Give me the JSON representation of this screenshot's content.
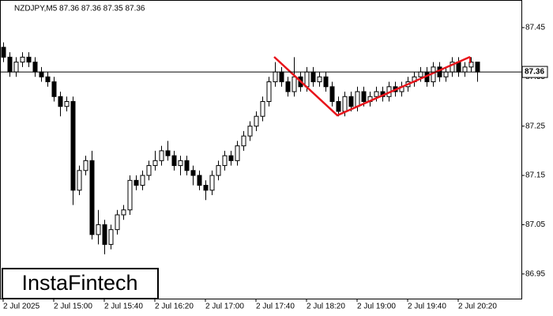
{
  "chart_data": {
    "type": "candlestick",
    "title": "NZDJPY,M5  87.36 87.36 87.35 87.36",
    "watermark": "InstaFintech",
    "categories": [
      "2 Jul 2025",
      null,
      null,
      null,
      null,
      null,
      null,
      null,
      "2 Jul 15:00",
      null,
      null,
      null,
      null,
      null,
      null,
      null,
      "2 Jul 15:40",
      null,
      null,
      null,
      null,
      null,
      null,
      null,
      "2 Jul 16:20",
      null,
      null,
      null,
      null,
      null,
      null,
      null,
      "2 Jul 17:00",
      null,
      null,
      null,
      null,
      null,
      null,
      null,
      "2 Jul 17:40",
      null,
      null,
      null,
      null,
      null,
      null,
      null,
      "2 Jul 18:20",
      null,
      null,
      null,
      null,
      null,
      null,
      null,
      "2 Jul 19:00",
      null,
      null,
      null,
      null,
      null,
      null,
      null,
      "2 Jul 19:40",
      null,
      null,
      null,
      null,
      null,
      null,
      null,
      "2 Jul 20:20",
      null,
      null,
      null
    ],
    "open": [
      87.41,
      87.39,
      87.36,
      87.38,
      87.39,
      87.38,
      87.36,
      87.35,
      87.34,
      87.31,
      87.29,
      87.3,
      87.12,
      87.16,
      87.18,
      87.03,
      87.05,
      87.01,
      87.04,
      87.07,
      87.08,
      87.14,
      87.13,
      87.15,
      87.17,
      87.18,
      87.2,
      87.19,
      87.17,
      87.18,
      87.16,
      87.15,
      87.13,
      87.12,
      87.15,
      87.17,
      87.19,
      87.18,
      87.21,
      87.23,
      87.25,
      87.27,
      87.3,
      87.34,
      87.36,
      87.34,
      87.32,
      87.35,
      87.33,
      87.36,
      87.34,
      87.35,
      87.33,
      87.3,
      87.28,
      87.31,
      87.29,
      87.32,
      87.3,
      87.31,
      87.32,
      87.31,
      87.33,
      87.32,
      87.33,
      87.34,
      87.35,
      87.36,
      87.34,
      87.37,
      87.35,
      87.36,
      87.38,
      87.36,
      87.37,
      87.38
    ],
    "high": [
      87.42,
      87.4,
      87.39,
      87.4,
      87.4,
      87.39,
      87.37,
      87.36,
      87.35,
      87.32,
      87.31,
      87.31,
      87.17,
      87.19,
      87.2,
      87.08,
      87.06,
      87.05,
      87.08,
      87.09,
      87.15,
      87.15,
      87.16,
      87.18,
      87.2,
      87.21,
      87.22,
      87.2,
      87.19,
      87.19,
      87.17,
      87.16,
      87.14,
      87.16,
      87.18,
      87.2,
      87.2,
      87.22,
      87.24,
      87.26,
      87.28,
      87.31,
      87.35,
      87.38,
      87.37,
      87.35,
      87.39,
      87.36,
      87.37,
      87.37,
      87.36,
      87.36,
      87.34,
      87.31,
      87.32,
      87.32,
      87.33,
      87.33,
      87.32,
      87.33,
      87.33,
      87.34,
      87.34,
      87.34,
      87.35,
      87.36,
      87.37,
      87.37,
      87.38,
      87.38,
      87.37,
      87.39,
      87.39,
      87.38,
      87.39,
      87.38
    ],
    "low": [
      87.38,
      87.35,
      87.35,
      87.37,
      87.37,
      87.35,
      87.34,
      87.33,
      87.3,
      87.27,
      87.28,
      87.09,
      87.11,
      87.15,
      87.02,
      87.01,
      86.99,
      87.0,
      87.03,
      87.06,
      87.07,
      87.12,
      87.12,
      87.14,
      87.16,
      87.17,
      87.18,
      87.16,
      87.15,
      87.15,
      87.13,
      87.12,
      87.1,
      87.11,
      87.14,
      87.16,
      87.17,
      87.17,
      87.2,
      87.22,
      87.24,
      87.26,
      87.29,
      87.33,
      87.33,
      87.31,
      87.31,
      87.32,
      87.32,
      87.33,
      87.33,
      87.32,
      87.29,
      87.27,
      87.27,
      87.28,
      87.28,
      87.29,
      87.29,
      87.3,
      87.3,
      87.3,
      87.31,
      87.31,
      87.32,
      87.33,
      87.34,
      87.33,
      87.33,
      87.34,
      87.34,
      87.35,
      87.35,
      87.35,
      87.36,
      87.34
    ],
    "close": [
      87.39,
      87.36,
      87.38,
      87.39,
      87.38,
      87.36,
      87.35,
      87.34,
      87.31,
      87.29,
      87.3,
      87.12,
      87.16,
      87.18,
      87.03,
      87.05,
      87.01,
      87.04,
      87.07,
      87.08,
      87.14,
      87.13,
      87.15,
      87.17,
      87.18,
      87.2,
      87.19,
      87.17,
      87.18,
      87.16,
      87.15,
      87.13,
      87.12,
      87.15,
      87.17,
      87.19,
      87.18,
      87.21,
      87.23,
      87.25,
      87.27,
      87.3,
      87.34,
      87.36,
      87.34,
      87.32,
      87.35,
      87.33,
      87.36,
      87.34,
      87.35,
      87.33,
      87.3,
      87.28,
      87.31,
      87.29,
      87.32,
      87.3,
      87.31,
      87.32,
      87.31,
      87.33,
      87.32,
      87.33,
      87.34,
      87.35,
      87.36,
      87.34,
      87.37,
      87.35,
      87.36,
      87.38,
      87.36,
      87.37,
      87.38,
      87.36
    ],
    "up_color": "#ffffff",
    "down_color": "#000000",
    "edge_color": "#000000",
    "current_price": 87.36,
    "ylim": [
      86.9,
      87.506
    ],
    "yticks": [
      86.95,
      87.05,
      87.15,
      87.25,
      87.35,
      87.45
    ]
  }
}
